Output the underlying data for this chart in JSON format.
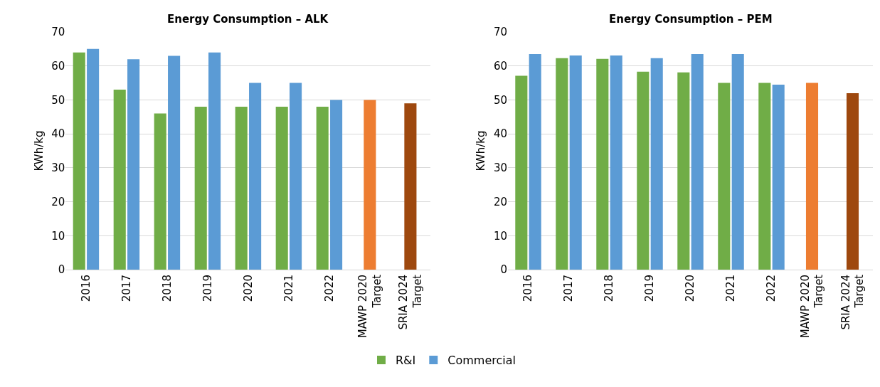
{
  "chart_data": [
    {
      "type": "bar",
      "title": "Energy Consumption – ALK",
      "ylabel": "KWh/kg",
      "categories": [
        "2016",
        "2017",
        "2018",
        "2019",
        "2020",
        "2021",
        "2022",
        "MAWP 2020 Target",
        "SRIA 2024 Target"
      ],
      "series": [
        {
          "name": "R&I",
          "color": "#70ad47",
          "values": [
            64,
            53,
            46,
            48,
            48,
            48,
            48,
            null,
            null
          ]
        },
        {
          "name": "Commercial",
          "color": "#5b9bd5",
          "values": [
            65,
            62,
            63,
            64,
            55,
            55,
            50,
            null,
            null
          ]
        },
        {
          "colors": [
            null,
            null,
            null,
            null,
            null,
            null,
            null,
            "#ed7d31",
            "#9e480e"
          ],
          "values": [
            null,
            null,
            null,
            null,
            null,
            null,
            null,
            50,
            49
          ]
        }
      ],
      "ylim": [
        0,
        70
      ],
      "yticks": [
        0,
        10,
        20,
        30,
        40,
        50,
        60,
        70
      ],
      "grid": "y",
      "legend": "bottom"
    },
    {
      "type": "bar",
      "title": "Energy Consumption – PEM",
      "ylabel": "KWh/kg",
      "categories": [
        "2016",
        "2017",
        "2018",
        "2019",
        "2020",
        "2021",
        "2022",
        "MAWP 2020 Target",
        "SRIA 2024 Target"
      ],
      "series": [
        {
          "color": "#70ad47",
          "values": [
            57.1,
            62.3,
            62.1,
            58.3,
            58.1,
            55,
            55,
            null,
            null
          ]
        },
        {
          "color": "#5b9bd5",
          "values": [
            63.5,
            63.1,
            63.1,
            62.3,
            63.5,
            63.5,
            54.5,
            null,
            null
          ]
        },
        {
          "colors": [
            null,
            null,
            null,
            null,
            null,
            null,
            null,
            "#ed7d31",
            "#9e480e"
          ],
          "values": [
            null,
            null,
            null,
            null,
            null,
            null,
            null,
            55,
            52
          ]
        }
      ],
      "ylim": [
        0,
        70
      ],
      "yticks": [
        0,
        10,
        20,
        30,
        40,
        50,
        60,
        70
      ],
      "grid": "y",
      "legend": false
    }
  ]
}
